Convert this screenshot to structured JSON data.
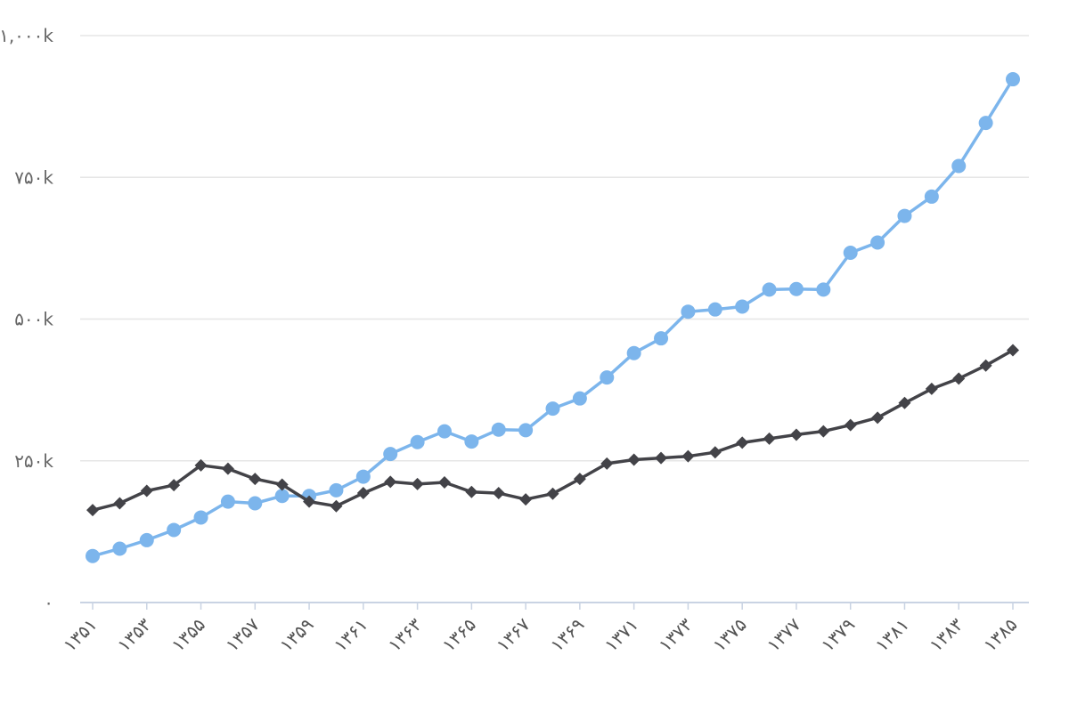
{
  "chart_data": {
    "type": "line",
    "title": "",
    "xlabel": "",
    "ylabel": "",
    "ylim": [
      0,
      1000000
    ],
    "grid": true,
    "y_ticks": [
      {
        "value": 0,
        "label": "۰"
      },
      {
        "value": 250000,
        "label": "۲۵۰k"
      },
      {
        "value": 500000,
        "label": "۵۰۰k"
      },
      {
        "value": 750000,
        "label": "۷۵۰k"
      },
      {
        "value": 1000000,
        "label": "۱,۰۰۰k"
      }
    ],
    "x": [
      "۱۳۵۱",
      "۱۳۵۲",
      "۱۳۵۳",
      "۱۳۵۴",
      "۱۳۵۵",
      "۱۳۵۶",
      "۱۳۵۷",
      "۱۳۵۸",
      "۱۳۵۹",
      "۱۳۶۰",
      "۱۳۶۱",
      "۱۳۶۲",
      "۱۳۶۳",
      "۱۳۶۴",
      "۱۳۶۵",
      "۱۳۶۶",
      "۱۳۶۷",
      "۱۳۶۸",
      "۱۳۶۹",
      "۱۳۷۰",
      "۱۳۷۱",
      "۱۳۷۲",
      "۱۳۷۳",
      "۱۳۷۴",
      "۱۳۷۵",
      "۱۳۷۶",
      "۱۳۷۷",
      "۱۳۷۸",
      "۱۳۷۹",
      "۱۳۸۰",
      "۱۳۸۱",
      "۱۳۸۲",
      "۱۳۸۳",
      "۱۳۸۴",
      "۱۳۸۵"
    ],
    "x_tick_labels": [
      "۱۳۵۱",
      "۱۳۵۳",
      "۱۳۵۵",
      "۱۳۵۷",
      "۱۳۵۹",
      "۱۳۶۱",
      "۱۳۶۳",
      "۱۳۶۵",
      "۱۳۶۷",
      "۱۳۶۹",
      "۱۳۷۱",
      "۱۳۷۳",
      "۱۳۷۵",
      "۱۳۷۷",
      "۱۳۷۹",
      "۱۳۸۱",
      "۱۳۸۳",
      "۱۳۸۵"
    ],
    "series": [
      {
        "marker": "circle",
        "color": "#7cb5ec",
        "values": [
          82000,
          95000,
          110000,
          128000,
          150000,
          178000,
          175000,
          188000,
          188000,
          198000,
          222000,
          262000,
          283000,
          302000,
          284000,
          305000,
          304000,
          342000,
          360000,
          397000,
          440000,
          466000,
          513000,
          517000,
          522000,
          552000,
          553000,
          552000,
          617000,
          635000,
          682000,
          716000,
          770000,
          846000,
          923000
        ]
      },
      {
        "marker": "diamond",
        "color": "#434348",
        "values": [
          163000,
          175000,
          197000,
          207000,
          242000,
          236000,
          218000,
          208000,
          178000,
          170000,
          193000,
          213000,
          209000,
          212000,
          195000,
          193000,
          182000,
          192000,
          218000,
          245000,
          252000,
          255000,
          258000,
          265000,
          282000,
          289000,
          296000,
          302000,
          313000,
          326000,
          352000,
          377000,
          395000,
          418000,
          445000
        ]
      }
    ]
  }
}
